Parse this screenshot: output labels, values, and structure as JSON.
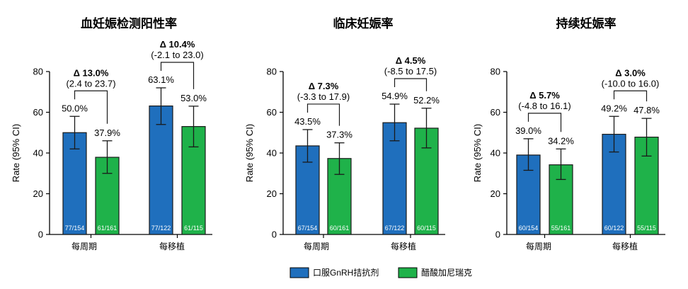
{
  "legend": [
    {
      "name": "口服GnRH拮抗剂",
      "color": "#1f6fbd"
    },
    {
      "name": "醋酸加尼瑞克",
      "color": "#1fb24a"
    }
  ],
  "chart_data": [
    {
      "type": "bar",
      "title": "血妊娠检测阳性率",
      "ylabel": "Rate (95% CI)",
      "ylim": [
        0,
        80
      ],
      "yticks": [
        0,
        20,
        40,
        60,
        80
      ],
      "categories": [
        "每周期",
        "每移植"
      ],
      "series": [
        {
          "name": "口服GnRH拮抗剂",
          "values": [
            50.0,
            63.1
          ],
          "ci_low": [
            42.0,
            54.0
          ],
          "ci_high": [
            58.0,
            72.0
          ],
          "labels": [
            "50.0%",
            "63.1%"
          ],
          "n": [
            "77/154",
            "77/122"
          ]
        },
        {
          "name": "醋酸加尼瑞克",
          "values": [
            37.9,
            53.0
          ],
          "ci_low": [
            30.0,
            43.0
          ],
          "ci_high": [
            46.0,
            63.0
          ],
          "labels": [
            "37.9%",
            "53.0%"
          ],
          "n": [
            "61/161",
            "61/115"
          ]
        }
      ],
      "deltas": [
        {
          "label": "Δ 13.0%",
          "ci": "(2.4 to 23.7)"
        },
        {
          "label": "Δ 10.4%",
          "ci": "(-2.1 to 23.0)"
        }
      ]
    },
    {
      "type": "bar",
      "title": "临床妊娠率",
      "ylabel": "Rate (95% CI)",
      "ylim": [
        0,
        80
      ],
      "yticks": [
        0,
        20,
        40,
        60,
        80
      ],
      "categories": [
        "每周期",
        "每移植"
      ],
      "series": [
        {
          "name": "口服GnRH拮抗剂",
          "values": [
            43.5,
            54.9
          ],
          "ci_low": [
            35.5,
            46.0
          ],
          "ci_high": [
            51.5,
            64.0
          ],
          "labels": [
            "43.5%",
            "54.9%"
          ],
          "n": [
            "67/154",
            "67/122"
          ]
        },
        {
          "name": "醋酸加尼瑞克",
          "values": [
            37.3,
            52.2
          ],
          "ci_low": [
            29.5,
            42.5
          ],
          "ci_high": [
            45.0,
            62.0
          ],
          "labels": [
            "37.3%",
            "52.2%"
          ],
          "n": [
            "60/161",
            "60/115"
          ]
        }
      ],
      "deltas": [
        {
          "label": "Δ 7.3%",
          "ci": "(-3.3 to 17.9)"
        },
        {
          "label": "Δ 4.5%",
          "ci": "(-8.5 to 17.5)"
        }
      ]
    },
    {
      "type": "bar",
      "title": "持续妊娠率",
      "ylabel": "Rate (95% CI)",
      "ylim": [
        0,
        80
      ],
      "yticks": [
        0,
        20,
        40,
        60,
        80
      ],
      "categories": [
        "每周期",
        "每移植"
      ],
      "series": [
        {
          "name": "口服GnRH拮抗剂",
          "values": [
            39.0,
            49.2
          ],
          "ci_low": [
            31.5,
            40.5
          ],
          "ci_high": [
            47.0,
            58.0
          ],
          "labels": [
            "39.0%",
            "49.2%"
          ],
          "n": [
            "60/154",
            "60/122"
          ]
        },
        {
          "name": "醋酸加尼瑞克",
          "values": [
            34.2,
            47.8
          ],
          "ci_low": [
            27.0,
            38.5
          ],
          "ci_high": [
            42.0,
            57.0
          ],
          "labels": [
            "34.2%",
            "47.8%"
          ],
          "n": [
            "55/161",
            "55/115"
          ]
        }
      ],
      "deltas": [
        {
          "label": "Δ 5.7%",
          "ci": "(-4.8 to 16.1)"
        },
        {
          "label": "Δ 3.0%",
          "ci": "(-10.0 to 16.0)"
        }
      ]
    }
  ]
}
